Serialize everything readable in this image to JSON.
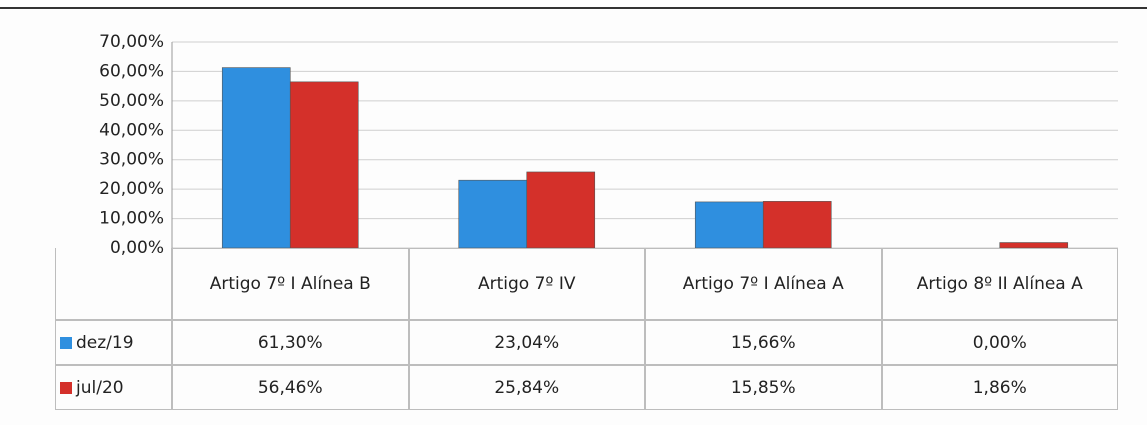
{
  "chart_data": {
    "type": "bar",
    "categories": [
      "Artigo 7º I Alínea B",
      "Artigo 7º IV",
      "Artigo 7º I Alínea A",
      "Artigo 8º II Alínea A"
    ],
    "series": [
      {
        "name": "dez/19",
        "color": "#2f8fdf",
        "values": [
          61.3,
          23.04,
          15.66,
          0.0
        ],
        "value_labels": [
          "61,30%",
          "23,04%",
          "15,66%",
          "0,00%"
        ]
      },
      {
        "name": "jul/20",
        "color": "#d4302a",
        "values": [
          56.46,
          25.84,
          15.85,
          1.86
        ],
        "value_labels": [
          "56,46%",
          "25,84%",
          "15,85%",
          "1,86%"
        ]
      }
    ],
    "ylim": [
      0,
      70
    ],
    "yticks": [
      {
        "value": 0,
        "label": "0,00%"
      },
      {
        "value": 10,
        "label": "10,00%"
      },
      {
        "value": 20,
        "label": "20,00%"
      },
      {
        "value": 30,
        "label": "30,00%"
      },
      {
        "value": 40,
        "label": "40,00%"
      },
      {
        "value": 50,
        "label": "50,00%"
      },
      {
        "value": 60,
        "label": "60,00%"
      },
      {
        "value": 70,
        "label": "70,00%"
      }
    ],
    "grid": true
  }
}
